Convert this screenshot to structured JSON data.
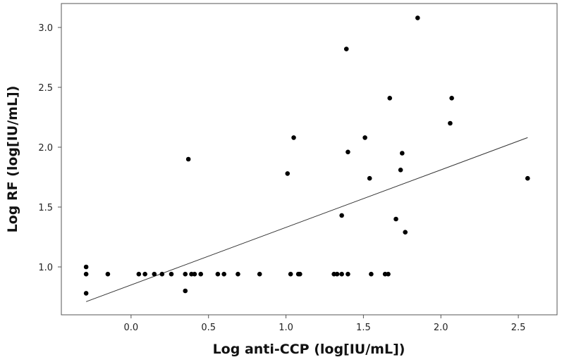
{
  "chart_data": {
    "type": "scatter",
    "xlabel": "Log anti-CCP (log[IU/mL])",
    "ylabel": "Log RF (log[IU/mL])",
    "xlim": [
      -0.45,
      2.75
    ],
    "ylim": [
      0.6,
      3.2
    ],
    "x_ticks": [
      0.0,
      0.5,
      1.0,
      1.5,
      2.0,
      2.5
    ],
    "x_tick_labels": [
      "0.0",
      "0.5",
      "1.0",
      "1.5",
      "2.0",
      "2.5"
    ],
    "y_ticks": [
      1.0,
      1.5,
      2.0,
      2.5,
      3.0
    ],
    "y_tick_labels": [
      "1.0",
      "1.5",
      "2.0",
      "2.5",
      "3.0"
    ],
    "grid": false,
    "legend": "none",
    "series": [
      {
        "marker_color": "#000000",
        "points": [
          {
            "x": -0.29,
            "y": 1.0
          },
          {
            "x": -0.29,
            "y": 0.94
          },
          {
            "x": -0.29,
            "y": 0.78
          },
          {
            "x": -0.15,
            "y": 0.94
          },
          {
            "x": 0.05,
            "y": 0.94
          },
          {
            "x": 0.09,
            "y": 0.94
          },
          {
            "x": 0.15,
            "y": 0.94
          },
          {
            "x": 0.2,
            "y": 0.94
          },
          {
            "x": 0.26,
            "y": 0.94
          },
          {
            "x": 0.35,
            "y": 0.94
          },
          {
            "x": 0.35,
            "y": 0.8
          },
          {
            "x": 0.37,
            "y": 1.9
          },
          {
            "x": 0.39,
            "y": 0.94
          },
          {
            "x": 0.41,
            "y": 0.94
          },
          {
            "x": 0.45,
            "y": 0.94
          },
          {
            "x": 0.56,
            "y": 0.94
          },
          {
            "x": 0.6,
            "y": 0.94
          },
          {
            "x": 0.69,
            "y": 0.94
          },
          {
            "x": 0.83,
            "y": 0.94
          },
          {
            "x": 1.01,
            "y": 1.78
          },
          {
            "x": 1.03,
            "y": 0.94
          },
          {
            "x": 1.05,
            "y": 2.08
          },
          {
            "x": 1.08,
            "y": 0.94
          },
          {
            "x": 1.09,
            "y": 0.94
          },
          {
            "x": 1.31,
            "y": 0.94
          },
          {
            "x": 1.33,
            "y": 0.94
          },
          {
            "x": 1.36,
            "y": 0.94
          },
          {
            "x": 1.36,
            "y": 1.43
          },
          {
            "x": 1.39,
            "y": 2.82
          },
          {
            "x": 1.4,
            "y": 1.96
          },
          {
            "x": 1.4,
            "y": 0.94
          },
          {
            "x": 1.51,
            "y": 2.08
          },
          {
            "x": 1.54,
            "y": 1.74
          },
          {
            "x": 1.55,
            "y": 0.94
          },
          {
            "x": 1.64,
            "y": 0.94
          },
          {
            "x": 1.66,
            "y": 0.94
          },
          {
            "x": 1.67,
            "y": 2.41
          },
          {
            "x": 1.71,
            "y": 1.4
          },
          {
            "x": 1.74,
            "y": 1.81
          },
          {
            "x": 1.75,
            "y": 1.95
          },
          {
            "x": 1.77,
            "y": 1.29
          },
          {
            "x": 1.85,
            "y": 3.08
          },
          {
            "x": 2.06,
            "y": 2.2
          },
          {
            "x": 2.07,
            "y": 2.41
          },
          {
            "x": 2.56,
            "y": 1.74
          }
        ]
      }
    ],
    "trendline": {
      "x": [
        -0.29,
        2.56
      ],
      "y": [
        0.71,
        2.08
      ],
      "color": "#333333"
    }
  }
}
